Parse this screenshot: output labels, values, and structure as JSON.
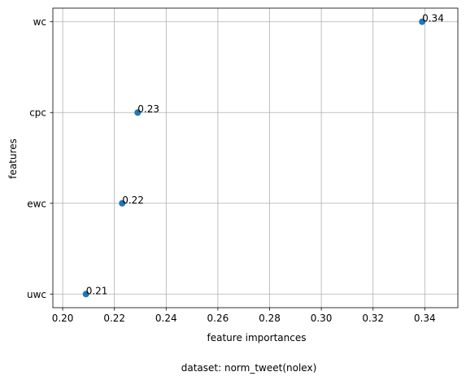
{
  "chart_data": {
    "type": "scatter",
    "title": "",
    "xlabel": "feature importances",
    "ylabel": "features",
    "caption": "dataset: norm_tweet(nolex)",
    "xlim": [
      0.1962,
      0.3528
    ],
    "x_ticks": [
      0.2,
      0.22,
      0.24,
      0.26,
      0.28,
      0.3,
      0.32,
      0.34
    ],
    "x_tick_labels": [
      "0.20",
      "0.22",
      "0.24",
      "0.26",
      "0.28",
      "0.30",
      "0.32",
      "0.34"
    ],
    "categories": [
      "uwc",
      "ewc",
      "cpc",
      "wc"
    ],
    "points": [
      {
        "category": "uwc",
        "x": 0.209,
        "label": "0.21"
      },
      {
        "category": "ewc",
        "x": 0.223,
        "label": "0.22"
      },
      {
        "category": "cpc",
        "x": 0.229,
        "label": "0.23"
      },
      {
        "category": "wc",
        "x": 0.339,
        "label": "0.34"
      }
    ],
    "grid": true,
    "marker_color": "#1f77b4"
  }
}
